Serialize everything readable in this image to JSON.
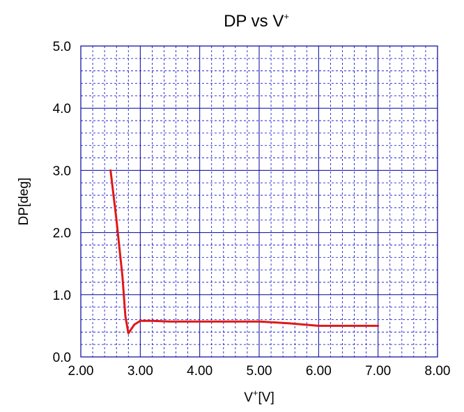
{
  "chart_data": {
    "type": "line",
    "title": {
      "main": "DP vs V",
      "sup": "+"
    },
    "xlabel": {
      "pre": "V",
      "sup": "+",
      "post": "[V]"
    },
    "ylabel": "DP[deg]",
    "xlim": [
      2.0,
      8.0
    ],
    "ylim": [
      0.0,
      5.0
    ],
    "x_ticks": [
      {
        "value": 2.0,
        "label": "2.00"
      },
      {
        "value": 3.0,
        "label": "3.00"
      },
      {
        "value": 4.0,
        "label": "4.00"
      },
      {
        "value": 5.0,
        "label": "5.00"
      },
      {
        "value": 6.0,
        "label": "6.00"
      },
      {
        "value": 7.0,
        "label": "7.00"
      },
      {
        "value": 8.0,
        "label": "8.00"
      }
    ],
    "y_ticks": [
      {
        "value": 0.0,
        "label": "0.0"
      },
      {
        "value": 1.0,
        "label": "1.0"
      },
      {
        "value": 2.0,
        "label": "2.0"
      },
      {
        "value": 3.0,
        "label": "3.0"
      },
      {
        "value": 4.0,
        "label": "4.0"
      },
      {
        "value": 5.0,
        "label": "5.0"
      }
    ],
    "grid": {
      "major": true,
      "minor": true,
      "minor_divisions_x": 5,
      "minor_divisions_y": 5
    },
    "colors": {
      "grid_major": "#0000a0",
      "grid_minor": "#0000c8",
      "frame": "#0000a0",
      "line": "#e01818"
    },
    "series": [
      {
        "x": [
          2.5,
          2.6,
          2.7,
          2.75,
          2.8,
          2.9,
          3.0,
          3.2,
          3.5,
          4.0,
          4.5,
          5.0,
          5.5,
          6.0,
          6.5,
          7.0
        ],
        "y": [
          3.0,
          2.2,
          1.3,
          0.65,
          0.38,
          0.52,
          0.58,
          0.58,
          0.57,
          0.57,
          0.57,
          0.57,
          0.54,
          0.5,
          0.5,
          0.5
        ]
      }
    ]
  }
}
